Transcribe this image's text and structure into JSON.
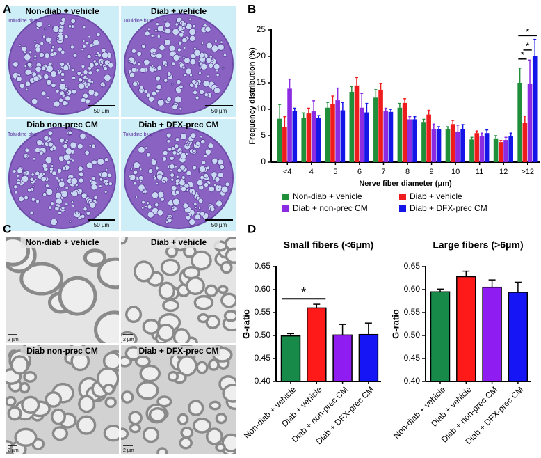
{
  "panel_labels": [
    "A",
    "B",
    "C",
    "D"
  ],
  "micrographs_a": [
    {
      "title": "Non-diab + vehicle",
      "stain": "Toluidine blue",
      "scale": "50 µm"
    },
    {
      "title": "Diab + vehicle",
      "stain": "Toluidine blue",
      "scale": "50 µm"
    },
    {
      "title": "Diab non-prec CM",
      "stain": "Toluidine blue",
      "scale": "50 µm"
    },
    {
      "title": "Diab + DFX-prec CM",
      "stain": "Toluidine blue",
      "scale": "50 µm"
    }
  ],
  "micrographs_c": [
    {
      "title": "Non-diab + vehicle",
      "scale": "2 µm"
    },
    {
      "title": "Diab + vehicle",
      "scale": "2 µm"
    },
    {
      "title": "Diab non-prec CM",
      "scale": "2 µm"
    },
    {
      "title": "Diab + DFX-prec CM",
      "scale": "2 µm"
    }
  ],
  "chart_data": [
    {
      "type": "bar",
      "ylabel": "Frequency distribution (%)",
      "xlabel": "Nerve fiber diameter (μm)",
      "categories": [
        "<4",
        "4",
        "5",
        "6",
        "7",
        "8",
        "9",
        "10",
        "11",
        "12",
        ">12"
      ],
      "series": [
        {
          "name": "Non-diab + vehicle",
          "color": "#1f8f3a",
          "values": [
            8.2,
            8.3,
            10.3,
            13.3,
            12.2,
            10.3,
            7.6,
            6.2,
            4.3,
            4.5,
            15
          ],
          "errors": [
            2.7,
            1,
            1,
            1,
            1.5,
            0.8,
            0.5,
            0.5,
            0.4,
            0.5,
            2.8
          ]
        },
        {
          "name": "Diab + vehicle",
          "color": "#ee1c1c",
          "values": [
            6.6,
            9.2,
            11,
            14.5,
            13.7,
            11.2,
            9,
            7.2,
            5.5,
            3.8,
            7.4
          ],
          "errors": [
            2,
            1,
            1.5,
            1.5,
            1.2,
            0.8,
            0.8,
            0.7,
            0.4,
            0.3,
            1.3
          ]
        },
        {
          "name": "Diab + non-prec CM",
          "color": "#8b2be2",
          "values": [
            13.9,
            9.6,
            11.7,
            10.3,
            9.7,
            8.1,
            6.2,
            5.8,
            5,
            4.2,
            14.8
          ],
          "errors": [
            1.8,
            2,
            2.3,
            2.7,
            0.5,
            0.5,
            1,
            1.2,
            0.5,
            0.5,
            4.5
          ]
        },
        {
          "name": "Diab + DFX-prec CM",
          "color": "#1515e8",
          "values": [
            9.7,
            8.3,
            9.8,
            9.4,
            9.5,
            8.1,
            6.2,
            6.3,
            5.5,
            5,
            20
          ],
          "errors": [
            0.5,
            0.5,
            1.5,
            1.7,
            0.5,
            0.5,
            0.5,
            0.8,
            0.6,
            0.5,
            3.2
          ]
        }
      ],
      "ylim": [
        0,
        25
      ],
      "yticks": [
        0,
        5,
        10,
        15,
        20,
        25
      ],
      "legend": "bottom",
      "annotations": [
        "*",
        "*",
        "*"
      ]
    },
    {
      "type": "bar",
      "title": "Small fibers (<6μm)",
      "ylabel": "G-ratio",
      "categories": [
        "Non-diab + vehicle",
        "Diab + vehicle",
        "Diab + non-prec CM",
        "Diab + DFX-prec CM"
      ],
      "values": [
        0.499,
        0.56,
        0.501,
        0.502
      ],
      "errors": [
        0.005,
        0.008,
        0.023,
        0.025
      ],
      "colors": [
        "#178a4a",
        "#ff1a1a",
        "#8f1cf0",
        "#1515f5"
      ],
      "ylim": [
        0.4,
        0.65
      ],
      "yticks": [
        {
          "value": 0.4,
          "label": "0.40"
        },
        {
          "value": 0.45,
          "label": "0.45"
        },
        {
          "value": 0.5,
          "label": "0.50"
        },
        {
          "value": 0.55,
          "label": "0.55"
        },
        {
          "value": 0.6,
          "label": "0.60"
        },
        {
          "value": 0.65,
          "label": "0.65"
        }
      ],
      "annotations": [
        "*"
      ]
    },
    {
      "type": "bar",
      "title": "Large fibers (>6μm)",
      "ylabel": "G-ratio",
      "categories": [
        "Non-diab + vehicle",
        "Diab + vehicle",
        "Diab + non-prec CM",
        "Diab + DFX-prec CM"
      ],
      "values": [
        0.595,
        0.628,
        0.605,
        0.594
      ],
      "errors": [
        0.006,
        0.012,
        0.016,
        0.022
      ],
      "colors": [
        "#178a4a",
        "#ff1a1a",
        "#8f1cf0",
        "#1515f5"
      ],
      "ylim": [
        0.4,
        0.65
      ],
      "yticks": [
        {
          "value": 0.4,
          "label": "0.40"
        },
        {
          "value": 0.45,
          "label": "0.45"
        },
        {
          "value": 0.5,
          "label": "0.50"
        },
        {
          "value": 0.55,
          "label": "0.55"
        },
        {
          "value": 0.6,
          "label": "0.60"
        },
        {
          "value": 0.65,
          "label": "0.65"
        }
      ]
    }
  ]
}
